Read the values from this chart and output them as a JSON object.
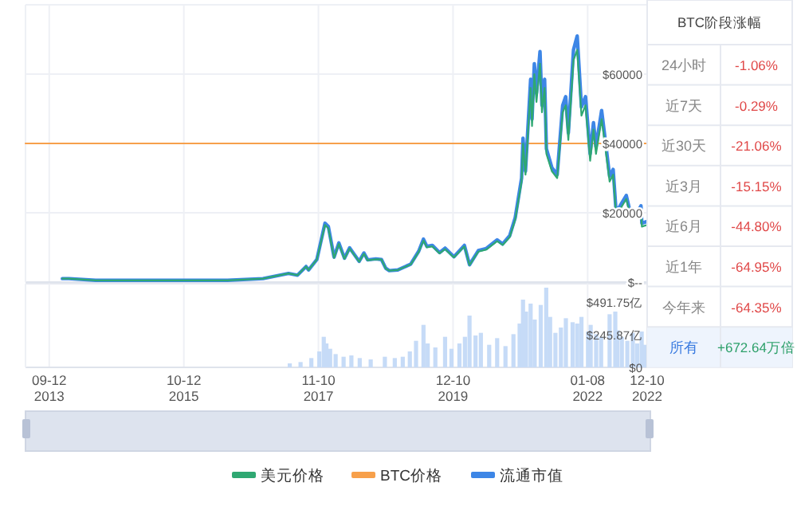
{
  "chart_data": [
    {
      "type": "line",
      "xlim": [
        "2013-05-01",
        "2022-12-10"
      ],
      "ylim": [
        0,
        80000
      ],
      "xticks": [
        {
          "value": "2013-09-12",
          "label": null
        },
        {
          "value": "2015-10-12",
          "label": null
        },
        {
          "value": "2017-11-10",
          "label": null
        },
        {
          "value": "2019-12-10",
          "label": null
        },
        {
          "value": "2022-01-08",
          "label": null
        },
        {
          "value": "2022-12-10",
          "label": null
        }
      ],
      "yticks": [
        {
          "value": 0,
          "label": "$--"
        },
        {
          "value": 20000,
          "label": "$20000"
        },
        {
          "value": 40000,
          "label": "$40000"
        },
        {
          "value": 60000,
          "label": "$60000"
        },
        {
          "value": 80000,
          "label": null
        }
      ],
      "tick_labels": "y",
      "grid": true,
      "legend": "bottom",
      "marker": "none",
      "line_style": "solid",
      "x": [
        "2013-11-25",
        "2014-01-01",
        "2014-06-01",
        "2015-01-01",
        "2016-01-01",
        "2016-06-15",
        "2017-01-01",
        "2017-05-25",
        "2017-07-15",
        "2017-09-01",
        "2017-09-15",
        "2017-11-01",
        "2017-12-17",
        "2018-01-05",
        "2018-02-06",
        "2018-03-05",
        "2018-04-06",
        "2018-05-05",
        "2018-06-28",
        "2018-07-25",
        "2018-08-15",
        "2018-09-30",
        "2018-11-01",
        "2018-11-25",
        "2018-12-15",
        "2019-02-01",
        "2019-04-15",
        "2019-05-30",
        "2019-06-26",
        "2019-07-15",
        "2019-08-15",
        "2019-09-25",
        "2019-10-26",
        "2019-12-15",
        "2020-02-12",
        "2020-03-12",
        "2020-05-01",
        "2020-06-15",
        "2020-08-15",
        "2020-09-15",
        "2020-10-25",
        "2020-11-25",
        "2020-12-31",
        "2021-01-08",
        "2021-01-22",
        "2021-02-20",
        "2021-02-28",
        "2021-03-13",
        "2021-03-25",
        "2021-04-14",
        "2021-04-25",
        "2021-05-10",
        "2021-05-20",
        "2021-06-20",
        "2021-07-20",
        "2021-08-20",
        "2021-09-06",
        "2021-09-21",
        "2021-10-20",
        "2021-11-10",
        "2021-12-04",
        "2021-12-27",
        "2022-01-22",
        "2022-02-10",
        "2022-02-24",
        "2022-03-28",
        "2022-04-15",
        "2022-05-12",
        "2022-06-01",
        "2022-06-18",
        "2022-07-10",
        "2022-08-14",
        "2022-09-06",
        "2022-10-15",
        "2022-11-05",
        "2022-11-10",
        "2022-12-10"
      ],
      "series": [
        {
          "name": "美元价格",
          "color": "#2fa872",
          "values": [
            1000,
            1000,
            500,
            500,
            500,
            500,
            1000,
            2500,
            2000,
            4500,
            3500,
            6500,
            16500,
            15500,
            7000,
            11000,
            6700,
            9700,
            5900,
            8200,
            6300,
            6600,
            6500,
            3900,
            3300,
            3500,
            5100,
            8700,
            12000,
            10000,
            10300,
            8300,
            9500,
            7100,
            10300,
            4900,
            8800,
            9400,
            11800,
            10700,
            13000,
            18000,
            29000,
            40000,
            31000,
            56000,
            45000,
            60000,
            52000,
            63000,
            49000,
            56000,
            37000,
            32000,
            30000,
            49000,
            51000,
            41000,
            64000,
            67000,
            48000,
            51000,
            35000,
            44000,
            37000,
            47000,
            40000,
            29000,
            31000,
            19000,
            21000,
            24000,
            19000,
            19000,
            21000,
            16000,
            16500
          ]
        },
        {
          "name": "BTC价格",
          "color": "#f7a04b",
          "x": [
            "2013-05-01",
            "2022-12-10"
          ],
          "values": [
            40000,
            40000
          ]
        },
        {
          "name": "流通市值",
          "color": "#3d86e6",
          "values": [
            1000,
            1000,
            500,
            500,
            500,
            500,
            1000,
            2500,
            2000,
            4500,
            3500,
            6500,
            17000,
            16000,
            7200,
            11300,
            6900,
            9900,
            6000,
            8400,
            6400,
            6700,
            6500,
            4000,
            3300,
            3500,
            5200,
            8900,
            12400,
            10300,
            10600,
            8500,
            9800,
            7300,
            10600,
            5000,
            9100,
            9700,
            12200,
            11000,
            13400,
            18600,
            30000,
            41500,
            32000,
            58500,
            47000,
            63000,
            54500,
            66500,
            51000,
            58500,
            38500,
            33000,
            31000,
            51000,
            53500,
            43000,
            67000,
            71000,
            50500,
            53500,
            37000,
            46000,
            39000,
            49500,
            42000,
            30500,
            32500,
            20000,
            22000,
            25000,
            20000,
            20000,
            22000,
            17000,
            17500
          ]
        }
      ]
    },
    {
      "type": "bar",
      "xlim": [
        "2013-05-01",
        "2022-12-10"
      ],
      "ylim": [
        0,
        630
      ],
      "xticks": [
        {
          "value": "2013-09-12",
          "label": "09-12\n2013"
        },
        {
          "value": "2015-10-12",
          "label": "10-12\n2015"
        },
        {
          "value": "2017-11-10",
          "label": "11-10\n2017"
        },
        {
          "value": "2019-12-10",
          "label": "12-10\n2019"
        },
        {
          "value": "2022-01-08",
          "label": "01-08\n2022"
        },
        {
          "value": "2022-12-10",
          "label": "12-10\n2022"
        }
      ],
      "yticks": [
        {
          "value": 0,
          "label": "$0"
        },
        {
          "value": 245.87,
          "label": "$245.87亿"
        },
        {
          "value": 491.75,
          "label": "$491.75亿"
        }
      ],
      "grid": "x",
      "color": "#c6dbf7",
      "x": [
        "2017-06-01",
        "2017-08-01",
        "2017-10-01",
        "2017-11-15",
        "2017-12-10",
        "2017-12-25",
        "2018-01-15",
        "2018-02-15",
        "2018-04-01",
        "2018-05-15",
        "2018-07-01",
        "2018-09-01",
        "2018-11-20",
        "2019-01-15",
        "2019-03-01",
        "2019-04-10",
        "2019-05-15",
        "2019-06-26",
        "2019-07-20",
        "2019-09-01",
        "2019-10-26",
        "2019-12-01",
        "2020-01-15",
        "2020-02-15",
        "2020-03-12",
        "2020-04-15",
        "2020-05-15",
        "2020-07-01",
        "2020-08-15",
        "2020-10-01",
        "2020-11-15",
        "2020-12-20",
        "2021-01-08",
        "2021-01-25",
        "2021-02-20",
        "2021-03-15",
        "2021-04-18",
        "2021-05-19",
        "2021-06-10",
        "2021-07-10",
        "2021-08-10",
        "2021-09-07",
        "2021-10-15",
        "2021-11-10",
        "2021-12-04",
        "2022-01-10",
        "2022-01-25",
        "2022-02-25",
        "2022-03-25",
        "2022-05-12",
        "2022-06-13",
        "2022-06-25",
        "2022-07-20",
        "2022-08-20",
        "2022-09-20",
        "2022-10-15",
        "2022-11-09",
        "2022-11-27"
      ],
      "values": [
        30,
        40,
        70,
        120,
        230,
        180,
        140,
        100,
        80,
        90,
        70,
        60,
        80,
        70,
        80,
        120,
        200,
        320,
        180,
        150,
        230,
        140,
        180,
        230,
        390,
        240,
        260,
        170,
        220,
        160,
        250,
        330,
        510,
        420,
        480,
        360,
        470,
        600,
        380,
        260,
        300,
        370,
        340,
        330,
        380,
        270,
        320,
        250,
        230,
        400,
        420,
        280,
        230,
        200,
        260,
        180,
        270,
        170
      ]
    },
    {
      "type": "other",
      "title": "BTC阶段涨幅",
      "categories": [
        "24小时",
        "近7天",
        "近30天",
        "近3月",
        "近6月",
        "近1年",
        "今年来",
        "所有"
      ],
      "value_labels": [
        "-1.06%",
        "-0.29%",
        "-21.06%",
        "-15.15%",
        "-44.80%",
        "-64.95%",
        "-64.35%",
        "+672.64万倍"
      ]
    }
  ]
}
